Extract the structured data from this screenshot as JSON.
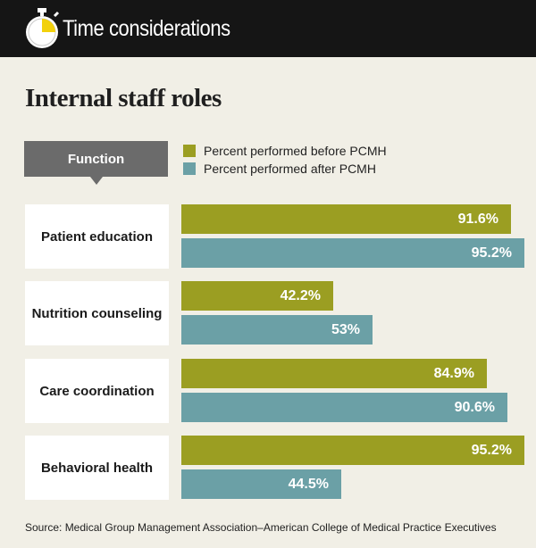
{
  "header": {
    "title": "Time considerations"
  },
  "colors": {
    "before": "#9b9e22",
    "after": "#6ba0a6",
    "function_box": "#6b6b6b",
    "stopwatch": "#f2d10c"
  },
  "chart_data": {
    "type": "bar",
    "orientation": "horizontal",
    "title": "Internal staff roles",
    "category_header": "Function",
    "categories": [
      "Patient education",
      "Nutrition counseling",
      "Care coordination",
      "Behavioral health"
    ],
    "series": [
      {
        "name": "Percent performed before PCMH",
        "values": [
          91.6,
          42.2,
          84.9,
          95.2
        ],
        "labels": [
          "91.6%",
          "42.2%",
          "84.9%",
          "95.2%"
        ]
      },
      {
        "name": "Percent performed after PCMH",
        "values": [
          95.2,
          53,
          90.6,
          44.5
        ],
        "labels": [
          "95.2%",
          "53%",
          "90.6%",
          "44.5%"
        ]
      }
    ],
    "xlim": [
      0,
      100
    ],
    "source": "Source: Medical Group Management Association–American College of Medical Practice Executives"
  }
}
